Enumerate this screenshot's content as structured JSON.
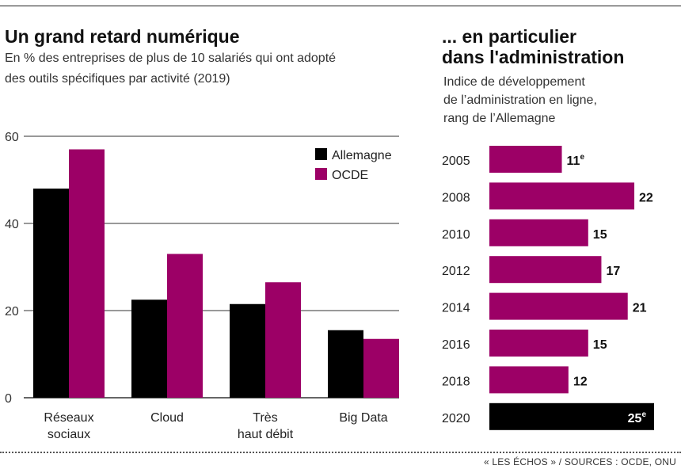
{
  "left": {
    "title": "Un grand retard numérique",
    "subtitle_line1": "En % des entreprises de plus de 10 salariés qui ont adopté",
    "subtitle_line2": "des outils spécifiques par activité (2019)"
  },
  "right": {
    "title_line1": "... en particulier",
    "title_line2": "dans l'administration",
    "subtitle_line1": "Indice de développement",
    "subtitle_line2": "de l’administration en ligne,",
    "subtitle_line3": "rang de l’Allemagne"
  },
  "source": "« LES ÉCHOS » / SOURCES : OCDE, ONU",
  "colors": {
    "allemagne": "#000000",
    "ocde": "#9c0066",
    "grid": "#333333"
  },
  "chart_data": [
    {
      "type": "bar",
      "title": "Un grand retard numérique",
      "categories": [
        [
          "Réseaux",
          "sociaux"
        ],
        [
          "Cloud"
        ],
        [
          "Très",
          "haut débit"
        ],
        [
          "Big Data"
        ]
      ],
      "series": [
        {
          "name": "Allemagne",
          "values": [
            48,
            22.5,
            21.5,
            15.5
          ]
        },
        {
          "name": "OCDE",
          "values": [
            57,
            33,
            26.5,
            13.5
          ]
        }
      ],
      "ylim": [
        0,
        60
      ],
      "yticks": [
        0,
        20,
        40,
        60
      ],
      "grid": true,
      "legend": "top-right"
    },
    {
      "type": "bar",
      "orientation": "horizontal",
      "title": "... en particulier dans l'administration",
      "categories": [
        "2005",
        "2008",
        "2010",
        "2012",
        "2014",
        "2016",
        "2018",
        "2020"
      ],
      "values": [
        11,
        22,
        15,
        17,
        21,
        15,
        12,
        25
      ],
      "labels": [
        "11",
        "22",
        "15",
        "17",
        "21",
        "15",
        "12",
        "25"
      ],
      "label_suffix": [
        "e",
        "",
        "",
        "",
        "",
        "",
        "",
        "e"
      ],
      "highlight_index": 7
    }
  ]
}
